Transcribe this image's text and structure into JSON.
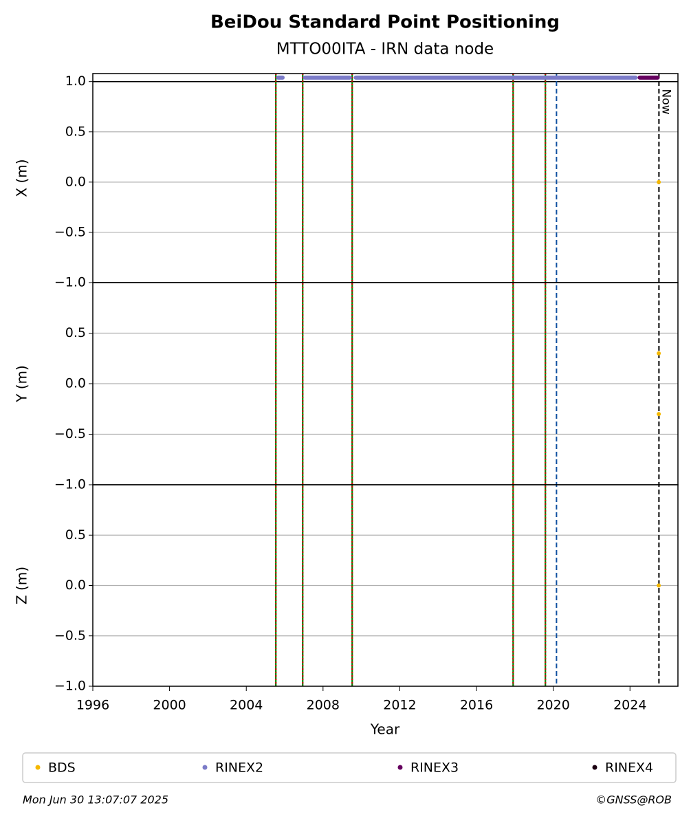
{
  "chart_data": {
    "type": "scatter",
    "title": "BeiDou Standard Point Positioning",
    "subtitle": "MTTO00ITA - IRN data node",
    "xlabel": "Year",
    "xlim": [
      1996,
      2026.5
    ],
    "xticks": [
      1996,
      2000,
      2004,
      2008,
      2012,
      2016,
      2020,
      2024
    ],
    "series": [
      {
        "name": "BDS",
        "color": "#f5b800"
      },
      {
        "name": "RINEX2",
        "color": "#7b7bc8",
        "ranges": [
          [
            2005.55,
            2006.0
          ],
          [
            2006.95,
            2009.5
          ],
          [
            2009.6,
            2024.4
          ]
        ]
      },
      {
        "name": "RINEX3",
        "color": "#66005f",
        "ranges": [
          [
            2024.4,
            2025.55
          ]
        ]
      },
      {
        "name": "RINEX4",
        "color": "#1a0010",
        "ranges": []
      }
    ],
    "availability_level": 1.04,
    "event_lines": {
      "x": [
        2005.54,
        2006.94,
        2009.52,
        2017.91,
        2019.59
      ],
      "color": "#008000",
      "overlay_color": "#d00000"
    },
    "config_lines": {
      "x": [
        2020.17
      ],
      "color": "#1050a0"
    },
    "now": {
      "x": 2025.51,
      "label": "Now"
    },
    "panels": [
      {
        "ylabel": "X (m)",
        "ylim": [
          -1,
          1.08
        ],
        "hline": 1,
        "yticks": [
          {
            "value": -1,
            "label": "−1.0"
          },
          {
            "value": -0.5,
            "label": "−0.5"
          },
          {
            "value": 0,
            "label": "0.0"
          },
          {
            "value": 0.5,
            "label": "0.5"
          },
          {
            "value": 1,
            "label": "1.0"
          }
        ],
        "points": {
          "x": [
            2025.5
          ],
          "values": [
            0.0
          ]
        }
      },
      {
        "ylabel": "Y (m)",
        "ylim": [
          -1,
          1
        ],
        "yticks": [
          {
            "value": -1,
            "label": "−1.0"
          },
          {
            "value": -0.5,
            "label": "−0.5"
          },
          {
            "value": 0,
            "label": "0.0"
          },
          {
            "value": 0.5,
            "label": "0.5"
          }
        ],
        "points": {
          "x": [
            2025.5,
            2025.5
          ],
          "values": [
            0.3,
            -0.3
          ]
        }
      },
      {
        "ylabel": "Z (m)",
        "ylim": [
          -1,
          1
        ],
        "yticks": [
          {
            "value": -1,
            "label": "−1.0"
          },
          {
            "value": -0.5,
            "label": "−0.5"
          },
          {
            "value": 0,
            "label": "0.0"
          },
          {
            "value": 0.5,
            "label": "0.5"
          }
        ],
        "points": {
          "x": [
            2025.5
          ],
          "values": [
            0.0
          ]
        }
      }
    ],
    "timestamp": "Mon Jun 30 13:07:07 2025",
    "credit": "©GNSS@ROB"
  }
}
